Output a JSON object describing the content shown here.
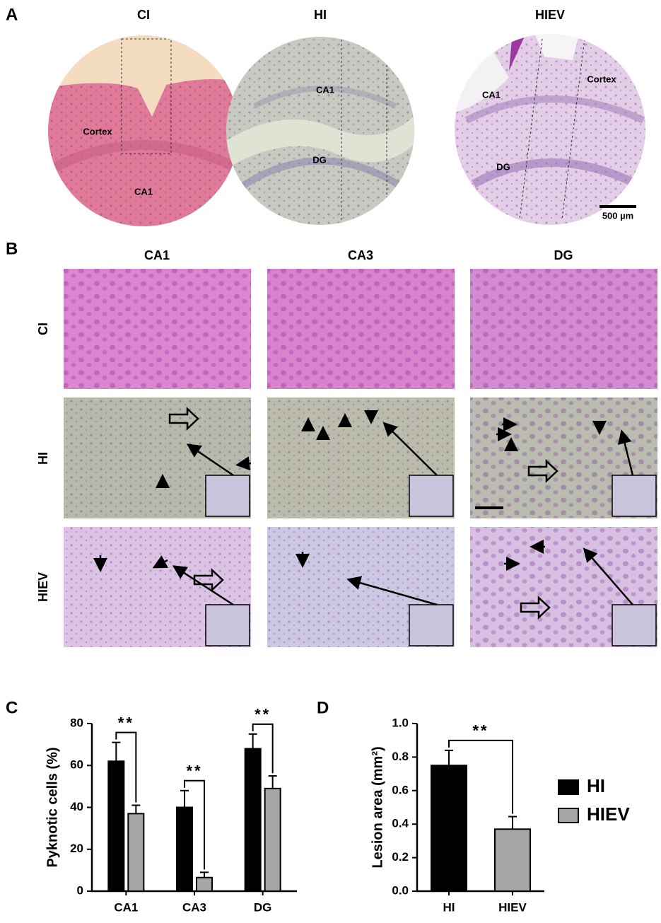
{
  "panel_a": {
    "label": "A",
    "columns": [
      "CI",
      "HI",
      "HIEV"
    ],
    "ci_regions": [
      "Cortex",
      "CA1"
    ],
    "hi_regions": [
      "CA1",
      "DG"
    ],
    "hiev_regions": [
      "CA1",
      "Cortex",
      "DG"
    ],
    "scale_bar": "500 µm"
  },
  "panel_b": {
    "label": "B",
    "columns": [
      "CA1",
      "CA3",
      "DG"
    ],
    "rows": [
      "CI",
      "HI",
      "HIEV"
    ]
  },
  "chart_data": [
    {
      "type": "bar",
      "panel": "C",
      "y_label": "Pyknotic cells (%)",
      "categories": [
        "CA1",
        "CA3",
        "DG"
      ],
      "series": [
        {
          "color": "#000000",
          "values": [
            62,
            40,
            68
          ],
          "errors": [
            9,
            8,
            7
          ]
        },
        {
          "color": "#a6a6a6",
          "values": [
            37,
            6.5,
            49
          ],
          "errors": [
            4,
            2.5,
            6
          ]
        }
      ],
      "significance": [
        "**",
        "**",
        "**"
      ],
      "ylim": [
        0,
        80
      ],
      "yticks": [
        0,
        20,
        40,
        60,
        80
      ]
    },
    {
      "type": "bar",
      "panel": "D",
      "y_label": "Lesion area (mm²)",
      "categories": [
        "HI",
        "HIEV"
      ],
      "values": [
        0.75,
        0.37
      ],
      "errors": [
        0.09,
        0.075
      ],
      "colors": [
        "#000000",
        "#a6a6a6"
      ],
      "significance": "**",
      "ylim": [
        0,
        1
      ],
      "yticks": [
        {
          "value": 0,
          "label": "0.0"
        },
        0.2,
        0.4,
        0.6,
        0.8,
        {
          "value": 1,
          "label": "1.0"
        }
      ],
      "legend": {
        "position": "right",
        "entries": [
          "HI",
          "HIEV"
        ]
      }
    }
  ]
}
